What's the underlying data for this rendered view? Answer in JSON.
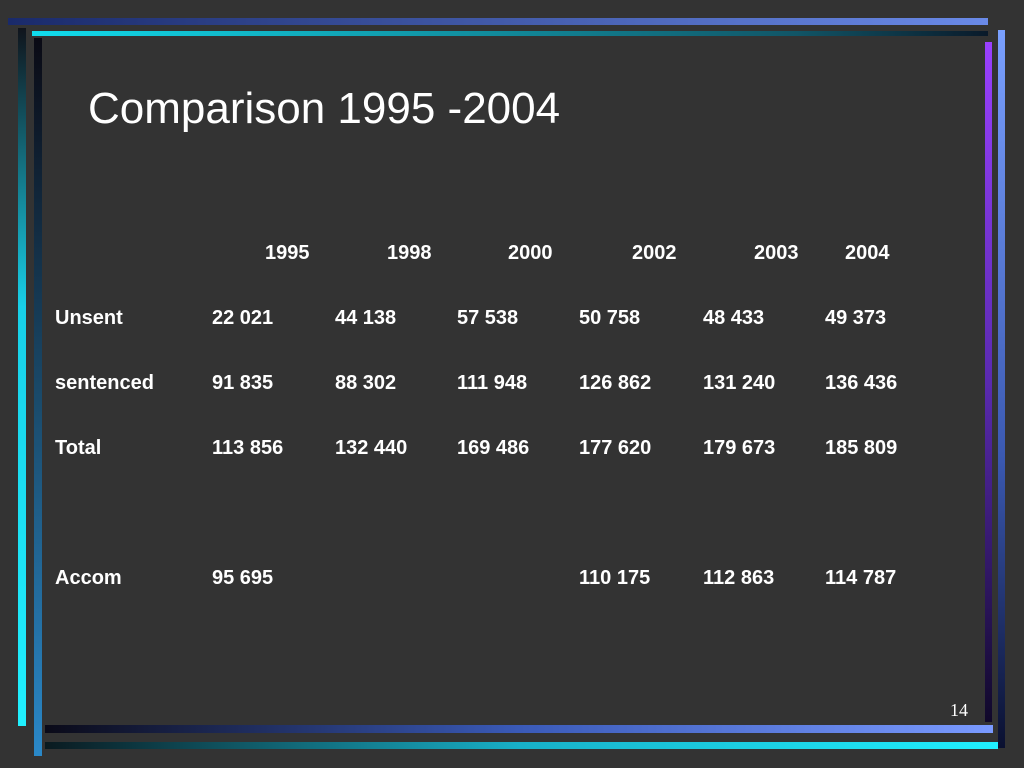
{
  "title": "Comparison 1995 -2004",
  "table": {
    "header": [
      "1995",
      "1998",
      "2000",
      "2002",
      "2003",
      "2004"
    ],
    "rows": [
      {
        "label": "Unsent",
        "cells": [
          "22 021",
          "44 138",
          "57 538",
          "50 758",
          "48 433",
          "49 373"
        ]
      },
      {
        "label": "sentenced",
        "cells": [
          "91 835",
          "88 302",
          "111 948",
          "126 862",
          "131 240",
          "136 436"
        ]
      },
      {
        "label": "Total",
        "cells": [
          "113 856",
          "132 440",
          "169 486",
          "177 620",
          "179 673",
          "185 809"
        ]
      },
      {
        "label": "Accom",
        "cells": [
          "95 695",
          null,
          null,
          "110 175",
          "112 863",
          "114 787"
        ]
      }
    ]
  },
  "page_number": "14"
}
